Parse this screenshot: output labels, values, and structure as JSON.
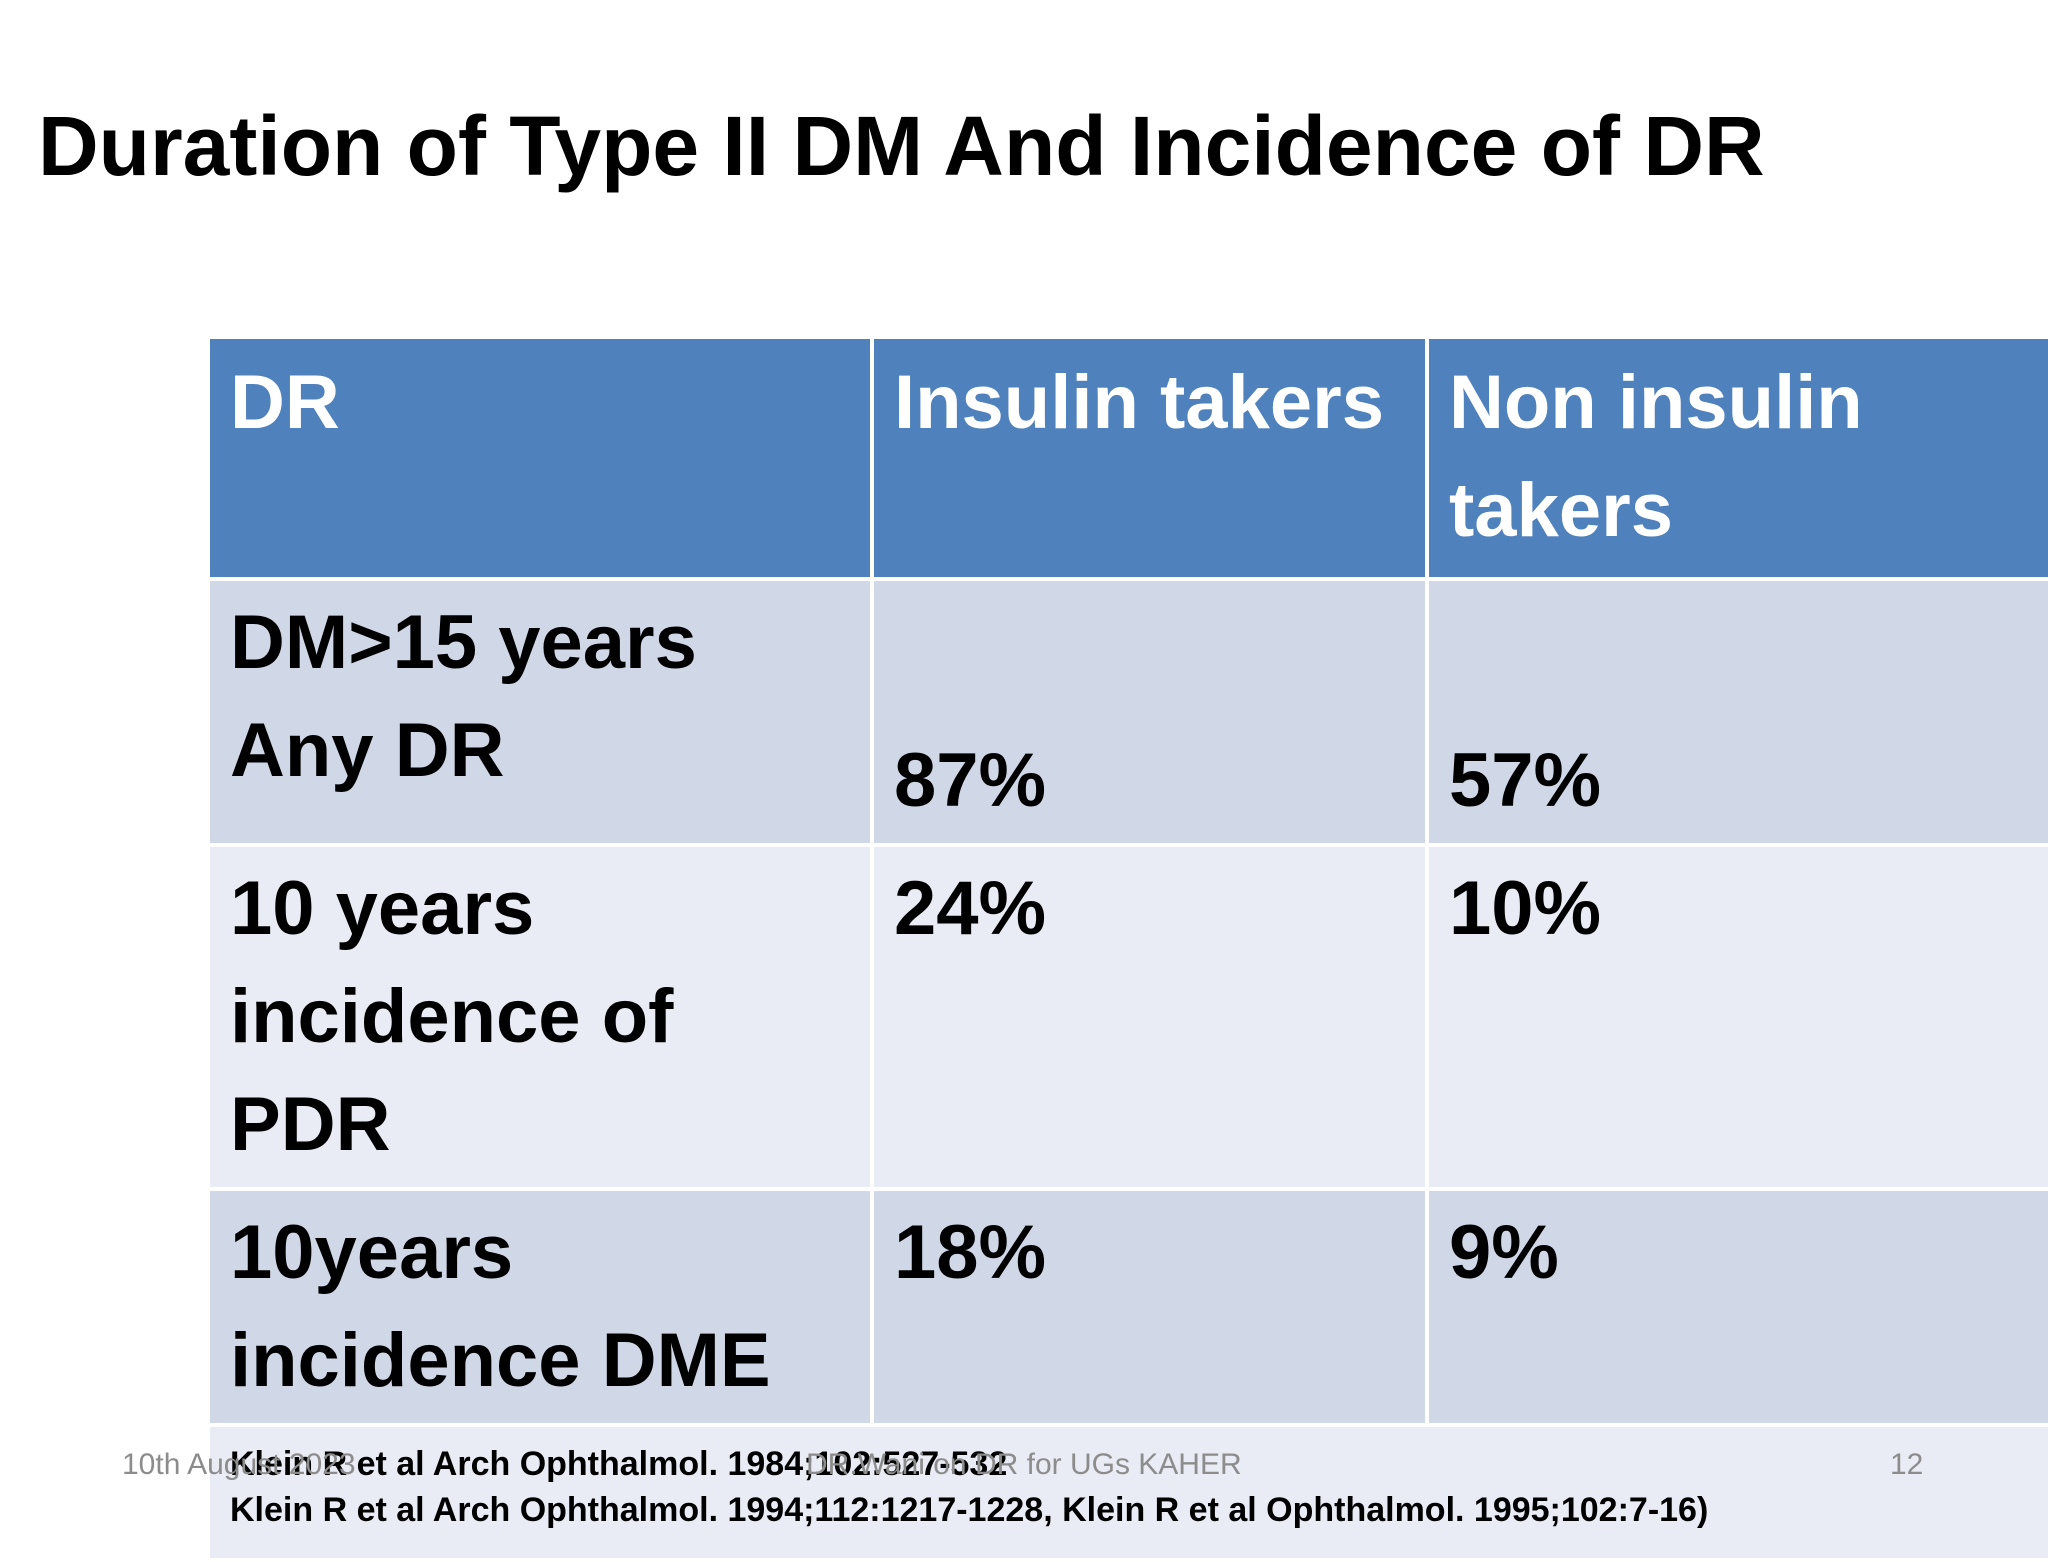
{
  "slide": {
    "title": "Duration of Type II DM And  Incidence of DR"
  },
  "table": {
    "headers": [
      "DR",
      "Insulin takers",
      "Non insulin takers"
    ],
    "rows": [
      {
        "label": "DM>15 years Any DR",
        "insulin": "87%",
        "non_insulin": "57%"
      },
      {
        "label": "10 years incidence of PDR",
        "insulin": "24%",
        "non_insulin": "10%"
      },
      {
        "label": "10years incidence DME",
        "insulin": "18%",
        "non_insulin": "9%"
      }
    ],
    "references": [
      "Klein R et al Arch Ophthalmol. 1984;102:527-532",
      "Klein R et al Arch Ophthalmol. 1994;112:1217-1228, Klein R et al Ophthalmol. 1995;102:7-16)"
    ]
  },
  "footer": {
    "date": "10th August 2023",
    "center": "DR.Wani  on DR for UGs  KAHER",
    "page_number": "12"
  },
  "colors": {
    "header_background": "#4f81bd",
    "row_band_dark": "#d0d8e8",
    "row_band_light": "#e9ecf4",
    "footer_text": "#8c8c8c"
  }
}
